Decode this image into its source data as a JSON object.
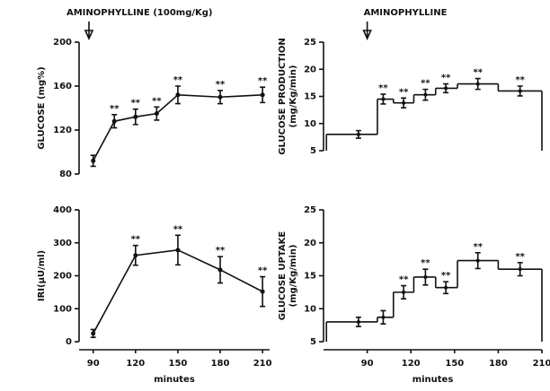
{
  "chart_data": [
    {
      "type": "line",
      "ylabel": [
        "GLUCOSE (mg%)"
      ],
      "annotation": {
        "text": "AMINOPHYLLINE (100mg/Kg)",
        "x": 87
      },
      "x": [
        90,
        105,
        120,
        135,
        150,
        180,
        210
      ],
      "values": [
        92,
        128,
        132,
        135,
        152,
        150,
        152
      ],
      "errors": [
        5,
        6,
        7,
        6,
        8,
        6,
        7
      ],
      "significance": [
        null,
        "**",
        "**",
        "**",
        "**",
        "**",
        "**"
      ],
      "xlim": [
        80,
        215
      ],
      "ylim": [
        80,
        200
      ],
      "yticks": [
        80,
        120,
        160,
        200
      ],
      "color": "#111111"
    },
    {
      "type": "step",
      "ylabel": [
        "GLUCOSE PRODUCTION",
        "(mg/Kg/min)"
      ],
      "annotation": {
        "text": "AMINOPHYLLINE",
        "x": 90
      },
      "bins": [
        62,
        97,
        108,
        122,
        137,
        152,
        180,
        210
      ],
      "x": [
        84,
        101,
        115,
        130,
        144,
        166,
        195
      ],
      "values": [
        8,
        14.5,
        13.8,
        15.3,
        16.5,
        17.3,
        16.0
      ],
      "errors": [
        0.7,
        0.9,
        0.9,
        1.0,
        0.8,
        1.0,
        0.9
      ],
      "significance": [
        null,
        "**",
        "**",
        "**",
        "**",
        "**",
        "**"
      ],
      "xlim": [
        60,
        210
      ],
      "ylim": [
        5,
        25
      ],
      "yticks": [
        5,
        10,
        15,
        20,
        25
      ],
      "color": "#111111"
    },
    {
      "type": "line",
      "ylabel": [
        "IRI(µU/ml)"
      ],
      "xlabel": "minutes",
      "x": [
        90,
        120,
        150,
        180,
        210
      ],
      "values": [
        25,
        262,
        278,
        218,
        152
      ],
      "errors": [
        12,
        30,
        45,
        40,
        45
      ],
      "significance": [
        null,
        "**",
        "**",
        "**",
        "**"
      ],
      "xlim": [
        80,
        215
      ],
      "xticks": [
        90,
        120,
        150,
        180,
        210
      ],
      "ylim": [
        0,
        400
      ],
      "yticks": [
        0,
        100,
        200,
        300,
        400
      ],
      "color": "#111111"
    },
    {
      "type": "step",
      "ylabel": [
        "GLUCOSE UPTAKE",
        "(mg/Kg/min)"
      ],
      "xlabel": "minutes",
      "bins": [
        62,
        97,
        108,
        122,
        137,
        152,
        180,
        210
      ],
      "x": [
        84,
        101,
        115,
        130,
        144,
        166,
        195
      ],
      "values": [
        8,
        8.7,
        12.5,
        14.8,
        13.2,
        17.3,
        16.0
      ],
      "errors": [
        0.7,
        1.0,
        1.0,
        1.2,
        0.9,
        1.2,
        1.0
      ],
      "significance": [
        null,
        null,
        "**",
        "**",
        "**",
        "**",
        "**"
      ],
      "xlim": [
        60,
        210
      ],
      "xticks": [
        90,
        120,
        150,
        180,
        210
      ],
      "ylim": [
        5,
        25
      ],
      "yticks": [
        5,
        10,
        15,
        20,
        25
      ],
      "color": "#111111"
    }
  ]
}
